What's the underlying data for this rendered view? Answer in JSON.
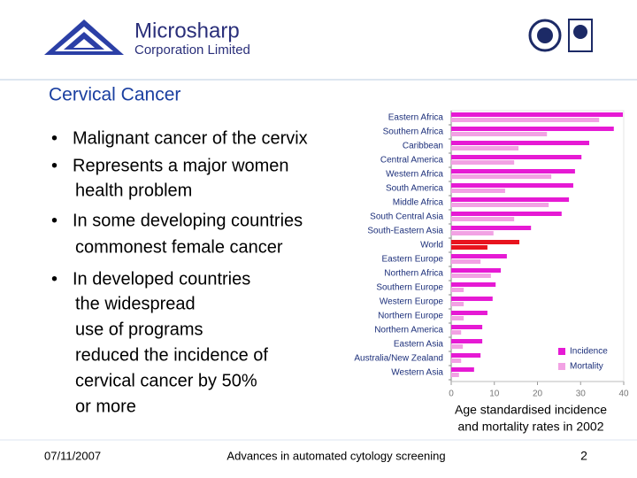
{
  "header": {
    "company": "Microsharp",
    "subtitle": "Corporation Limited"
  },
  "title": "Cervical Cancer",
  "bullets": [
    [
      "Malignant cancer of the cervix"
    ],
    [
      "Represents a major women",
      "health problem"
    ],
    [
      "In some developing countries",
      "commonest female cancer"
    ],
    [
      "In developed countries",
      "the widespread",
      "use of programs",
      "reduced the incidence of",
      "cervical cancer by 50%",
      "or more"
    ]
  ],
  "caption": [
    "Age standardised incidence",
    "and mortality rates in 2002"
  ],
  "footer": {
    "date": "07/11/2007",
    "text": "Advances in automated cytology screening",
    "page": "2"
  },
  "chart_data": {
    "type": "bar",
    "orientation": "horizontal",
    "categories": [
      "Eastern Africa",
      "Southern Africa",
      "Caribbean",
      "Central America",
      "Western Africa",
      "South America",
      "Middle Africa",
      "South Central Asia",
      "South-Eastern Asia",
      "World",
      "Eastern Europe",
      "Northern Africa",
      "Southern Europe",
      "Western Europe",
      "Northern Europe",
      "Northern America",
      "Eastern Asia",
      "Australia/New Zealand",
      "Western Asia"
    ],
    "series": [
      {
        "name": "Incidence",
        "color": "#e61ad4",
        "values": [
          39.8,
          37.7,
          32,
          30.2,
          28.7,
          28.3,
          27.3,
          25.6,
          18.5,
          15.8,
          12.9,
          11.5,
          10.3,
          9.6,
          8.4,
          7.2,
          7.2,
          6.8,
          5.3
        ],
        "colors": [
          "#e61ad4",
          "#e61ad4",
          "#e61ad4",
          "#e61ad4",
          "#e61ad4",
          "#e61ad4",
          "#e61ad4",
          "#e61ad4",
          "#e61ad4",
          "#e8141e",
          "#e61ad4",
          "#e61ad4",
          "#e61ad4",
          "#e61ad4",
          "#e61ad4",
          "#e61ad4",
          "#e61ad4",
          "#e61ad4",
          "#e61ad4"
        ]
      },
      {
        "name": "Mortality",
        "color": "#f2a2e4",
        "values": [
          34.3,
          22.2,
          15.6,
          14.6,
          23.2,
          12.5,
          22.6,
          14.6,
          9.8,
          8.4,
          6.8,
          9.2,
          2.9,
          2.9,
          2.9,
          2.3,
          2.7,
          2.3,
          1.8
        ],
        "colors": [
          "#f2a2e4",
          "#f2a2e4",
          "#f2a2e4",
          "#f2a2e4",
          "#f2a2e4",
          "#f2a2e4",
          "#f2a2e4",
          "#f2a2e4",
          "#f2a2e4",
          "#e8141e",
          "#f2a2e4",
          "#f2a2e4",
          "#f2a2e4",
          "#f2a2e4",
          "#f2a2e4",
          "#f2a2e4",
          "#f2a2e4",
          "#f2a2e4",
          "#f2a2e4"
        ]
      }
    ],
    "xlim": [
      0,
      40
    ],
    "xticks": [
      0,
      10,
      20,
      30,
      40
    ],
    "legend": "lower right"
  }
}
